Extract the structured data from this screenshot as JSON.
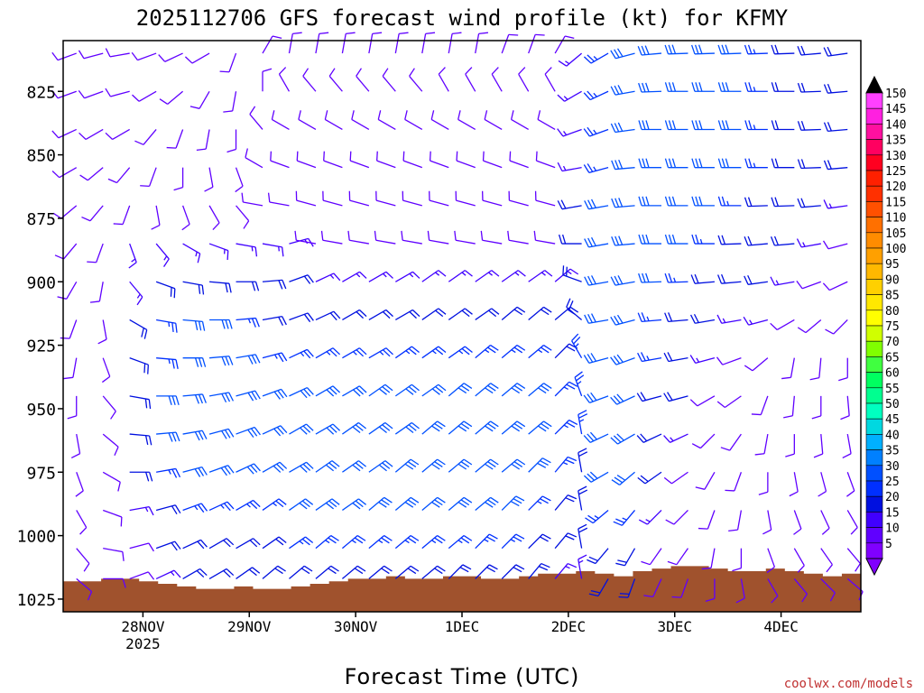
{
  "chart_data": {
    "type": "wind-barb-profile",
    "title": "2025112706 GFS forecast wind profile (kt) for KFMY",
    "xlabel": "Forecast Time (UTC)",
    "ylabel": "",
    "credit": "coolwx.com/models",
    "x_ticks": [
      {
        "label": "28NOV",
        "sublabel": "2025",
        "hour": 18
      },
      {
        "label": "29NOV",
        "sublabel": "",
        "hour": 42
      },
      {
        "label": "30NOV",
        "sublabel": "",
        "hour": 66
      },
      {
        "label": "1DEC",
        "sublabel": "",
        "hour": 90
      },
      {
        "label": "2DEC",
        "sublabel": "",
        "hour": 114
      },
      {
        "label": "3DEC",
        "sublabel": "",
        "hour": 138
      },
      {
        "label": "4DEC",
        "sublabel": "",
        "hour": 162
      }
    ],
    "x_range_hours": [
      0,
      180
    ],
    "y_ticks": [
      "825",
      "850",
      "875",
      "900",
      "925",
      "950",
      "975",
      "1000",
      "1025"
    ],
    "y_range_hpa": [
      805,
      1030
    ],
    "pressure_levels": [
      810,
      825,
      840,
      855,
      870,
      885,
      900,
      915,
      930,
      945,
      960,
      975,
      990,
      1005,
      1017
    ],
    "colorbar": {
      "labels": [
        "150",
        "145",
        "140",
        "135",
        "130",
        "125",
        "120",
        "115",
        "110",
        "105",
        "100",
        "95",
        "90",
        "85",
        "80",
        "75",
        "70",
        "65",
        "60",
        "55",
        "50",
        "45",
        "40",
        "35",
        "30",
        "25",
        "20",
        "15",
        "10",
        "5"
      ],
      "colors": [
        "#ff40ff",
        "#ff20e0",
        "#ff10a0",
        "#ff0060",
        "#ff0020",
        "#ff2000",
        "#ff3000",
        "#ff5000",
        "#ff7000",
        "#ff8c00",
        "#ffa000",
        "#ffb800",
        "#ffd000",
        "#ffe800",
        "#ffff00",
        "#d0ff00",
        "#80ff00",
        "#40ff40",
        "#00ff60",
        "#00ff90",
        "#00ffc0",
        "#00d8e0",
        "#00b0ff",
        "#0080ff",
        "#0050ff",
        "#0030ff",
        "#0010e0",
        "#4000ff",
        "#6000ff",
        "#8000ff"
      ]
    },
    "terrain_color": "#a0522d",
    "terrain_surface_hpa": [
      1018,
      1018,
      1017,
      1017,
      1018,
      1019,
      1020,
      1021,
      1021,
      1020,
      1021,
      1021,
      1020,
      1019,
      1018,
      1017,
      1017,
      1016,
      1017,
      1017,
      1016,
      1016,
      1017,
      1017,
      1016,
      1015,
      1015,
      1014,
      1015,
      1016,
      1014,
      1013,
      1012,
      1012,
      1013,
      1014,
      1014,
      1013,
      1014,
      1015,
      1016,
      1015
    ],
    "wind_profile": [
      {
        "hour": 3,
        "speeds": [
          10,
          10,
          10,
          10,
          10,
          10,
          8,
          8,
          8,
          8,
          8,
          8,
          8,
          8,
          8
        ],
        "dirs": [
          250,
          250,
          245,
          240,
          230,
          220,
          210,
          200,
          190,
          180,
          170,
          160,
          150,
          140,
          130
        ]
      },
      {
        "hour": 9,
        "speeds": [
          10,
          10,
          10,
          10,
          12,
          12,
          12,
          12,
          12,
          12,
          12,
          10,
          10,
          10,
          10
        ],
        "dirs": [
          255,
          250,
          240,
          230,
          220,
          200,
          190,
          170,
          160,
          140,
          130,
          120,
          110,
          100,
          90
        ]
      },
      {
        "hour": 15,
        "speeds": [
          8,
          8,
          10,
          10,
          12,
          15,
          15,
          18,
          20,
          20,
          20,
          18,
          15,
          12,
          10
        ],
        "dirs": [
          260,
          255,
          240,
          220,
          200,
          160,
          140,
          120,
          110,
          100,
          95,
          90,
          80,
          75,
          70
        ]
      },
      {
        "hour": 21,
        "speeds": [
          8,
          8,
          10,
          10,
          12,
          15,
          20,
          25,
          25,
          28,
          28,
          25,
          20,
          18,
          15
        ],
        "dirs": [
          250,
          240,
          220,
          200,
          170,
          140,
          110,
          100,
          95,
          90,
          85,
          80,
          75,
          70,
          65
        ]
      },
      {
        "hour": 27,
        "speeds": [
          8,
          8,
          10,
          10,
          12,
          15,
          22,
          28,
          28,
          30,
          30,
          28,
          25,
          22,
          18
        ],
        "dirs": [
          245,
          230,
          200,
          180,
          160,
          120,
          100,
          95,
          90,
          85,
          80,
          75,
          70,
          65,
          60
        ]
      },
      {
        "hour": 33,
        "speeds": [
          8,
          8,
          10,
          10,
          12,
          15,
          22,
          28,
          30,
          30,
          30,
          28,
          25,
          22,
          20
        ],
        "dirs": [
          240,
          210,
          190,
          170,
          150,
          110,
          95,
          90,
          85,
          80,
          75,
          70,
          65,
          60,
          60
        ]
      },
      {
        "hour": 39,
        "speeds": [
          8,
          8,
          8,
          10,
          12,
          15,
          20,
          25,
          28,
          30,
          30,
          28,
          25,
          22,
          20
        ],
        "dirs": [
          200,
          190,
          180,
          160,
          140,
          100,
          90,
          85,
          80,
          75,
          70,
          65,
          60,
          60,
          55
        ]
      },
      {
        "hour": 45,
        "speeds": [
          10,
          10,
          10,
          12,
          12,
          15,
          18,
          22,
          25,
          28,
          30,
          28,
          25,
          22,
          20
        ],
        "dirs": [
          30,
          0,
          320,
          300,
          280,
          100,
          85,
          80,
          75,
          70,
          65,
          60,
          55,
          55,
          50
        ]
      },
      {
        "hour": 51,
        "speeds": [
          10,
          12,
          12,
          12,
          12,
          15,
          18,
          22,
          25,
          28,
          30,
          30,
          28,
          25,
          22
        ],
        "dirs": [
          10,
          330,
          300,
          290,
          280,
          75,
          70,
          70,
          65,
          65,
          60,
          60,
          55,
          55,
          50
        ]
      },
      {
        "hour": 57,
        "speeds": [
          10,
          12,
          12,
          12,
          12,
          12,
          15,
          20,
          25,
          28,
          30,
          30,
          28,
          25,
          20
        ],
        "dirs": [
          10,
          320,
          300,
          290,
          285,
          280,
          65,
          65,
          60,
          60,
          60,
          55,
          55,
          50,
          50
        ]
      },
      {
        "hour": 63,
        "speeds": [
          10,
          12,
          12,
          12,
          12,
          12,
          15,
          20,
          25,
          28,
          30,
          30,
          28,
          25,
          20
        ],
        "dirs": [
          10,
          320,
          300,
          290,
          285,
          280,
          60,
          60,
          60,
          60,
          55,
          55,
          55,
          50,
          50
        ]
      },
      {
        "hour": 69,
        "speeds": [
          10,
          12,
          12,
          12,
          12,
          12,
          15,
          20,
          25,
          28,
          30,
          30,
          28,
          25,
          20
        ],
        "dirs": [
          10,
          320,
          300,
          290,
          285,
          280,
          60,
          60,
          60,
          55,
          55,
          55,
          50,
          50,
          50
        ]
      },
      {
        "hour": 75,
        "speeds": [
          10,
          12,
          12,
          12,
          12,
          12,
          15,
          20,
          25,
          28,
          30,
          30,
          28,
          25,
          20
        ],
        "dirs": [
          10,
          320,
          300,
          290,
          285,
          280,
          60,
          60,
          55,
          55,
          55,
          50,
          50,
          50,
          50
        ]
      },
      {
        "hour": 81,
        "speeds": [
          10,
          12,
          12,
          12,
          12,
          12,
          15,
          20,
          25,
          28,
          30,
          30,
          28,
          25,
          20
        ],
        "dirs": [
          10,
          320,
          300,
          290,
          285,
          280,
          55,
          55,
          55,
          55,
          50,
          50,
          50,
          50,
          50
        ]
      },
      {
        "hour": 87,
        "speeds": [
          10,
          12,
          12,
          12,
          12,
          12,
          15,
          20,
          25,
          28,
          30,
          30,
          28,
          25,
          20
        ],
        "dirs": [
          10,
          330,
          300,
          290,
          285,
          280,
          55,
          55,
          55,
          50,
          50,
          50,
          50,
          50,
          45
        ]
      },
      {
        "hour": 93,
        "speeds": [
          10,
          12,
          12,
          12,
          12,
          12,
          15,
          20,
          25,
          28,
          30,
          30,
          28,
          25,
          20
        ],
        "dirs": [
          10,
          330,
          300,
          290,
          285,
          280,
          55,
          55,
          50,
          50,
          50,
          50,
          50,
          45,
          45
        ]
      },
      {
        "hour": 99,
        "speeds": [
          10,
          12,
          12,
          12,
          12,
          12,
          15,
          20,
          25,
          28,
          30,
          30,
          28,
          25,
          20
        ],
        "dirs": [
          20,
          330,
          300,
          290,
          285,
          280,
          55,
          50,
          50,
          50,
          50,
          50,
          45,
          45,
          45
        ]
      },
      {
        "hour": 105,
        "speeds": [
          10,
          12,
          12,
          12,
          12,
          12,
          15,
          20,
          25,
          28,
          28,
          28,
          25,
          22,
          18
        ],
        "dirs": [
          20,
          330,
          300,
          290,
          285,
          280,
          55,
          50,
          50,
          50,
          50,
          45,
          45,
          45,
          40
        ]
      },
      {
        "hour": 111,
        "speeds": [
          10,
          12,
          12,
          12,
          12,
          12,
          15,
          18,
          22,
          25,
          25,
          25,
          22,
          20,
          15
        ],
        "dirs": [
          30,
          330,
          300,
          290,
          285,
          280,
          50,
          50,
          45,
          45,
          45,
          40,
          40,
          40,
          40
        ]
      },
      {
        "hour": 117,
        "speeds": [
          15,
          15,
          15,
          15,
          18,
          18,
          20,
          22,
          25,
          25,
          25,
          22,
          20,
          18,
          15
        ],
        "dirs": [
          230,
          240,
          250,
          260,
          260,
          270,
          290,
          310,
          330,
          340,
          350,
          350,
          350,
          350,
          350
        ]
      },
      {
        "hour": 123,
        "speeds": [
          25,
          25,
          25,
          25,
          28,
          28,
          28,
          30,
          30,
          30,
          30,
          28,
          25,
          22,
          20
        ],
        "dirs": [
          240,
          245,
          250,
          255,
          260,
          260,
          260,
          260,
          255,
          250,
          245,
          240,
          230,
          220,
          210
        ]
      },
      {
        "hour": 129,
        "speeds": [
          28,
          30,
          30,
          30,
          30,
          30,
          30,
          30,
          30,
          30,
          28,
          28,
          25,
          22,
          18
        ],
        "dirs": [
          255,
          260,
          262,
          265,
          265,
          265,
          260,
          255,
          250,
          245,
          240,
          230,
          220,
          210,
          200
        ]
      },
      {
        "hour": 135,
        "speeds": [
          30,
          30,
          30,
          30,
          30,
          30,
          28,
          25,
          25,
          22,
          20,
          18,
          15,
          12,
          10
        ],
        "dirs": [
          265,
          268,
          270,
          270,
          270,
          270,
          268,
          265,
          260,
          255,
          245,
          235,
          225,
          215,
          205
        ]
      },
      {
        "hour": 141,
        "speeds": [
          30,
          30,
          30,
          30,
          30,
          28,
          25,
          22,
          20,
          18,
          15,
          12,
          10,
          10,
          8
        ],
        "dirs": [
          268,
          270,
          270,
          270,
          270,
          270,
          268,
          265,
          260,
          255,
          245,
          235,
          225,
          215,
          200
        ]
      },
      {
        "hour": 147,
        "speeds": [
          28,
          30,
          30,
          30,
          28,
          25,
          22,
          18,
          15,
          12,
          10,
          10,
          8,
          8,
          8
        ],
        "dirs": [
          268,
          270,
          270,
          270,
          270,
          270,
          265,
          260,
          255,
          240,
          225,
          210,
          200,
          190,
          180
        ]
      },
      {
        "hour": 153,
        "speeds": [
          28,
          28,
          28,
          28,
          25,
          22,
          18,
          15,
          12,
          10,
          10,
          8,
          8,
          8,
          8
        ],
        "dirs": [
          268,
          270,
          270,
          270,
          270,
          268,
          265,
          260,
          250,
          235,
          215,
          200,
          190,
          180,
          170
        ]
      },
      {
        "hour": 159,
        "speeds": [
          25,
          25,
          25,
          25,
          22,
          20,
          18,
          15,
          12,
          10,
          8,
          8,
          8,
          8,
          8
        ],
        "dirs": [
          268,
          270,
          270,
          270,
          268,
          265,
          262,
          255,
          230,
          200,
          190,
          180,
          170,
          160,
          150
        ]
      },
      {
        "hour": 165,
        "speeds": [
          22,
          22,
          22,
          22,
          20,
          18,
          15,
          12,
          10,
          10,
          8,
          8,
          8,
          8,
          8
        ],
        "dirs": [
          268,
          270,
          270,
          270,
          268,
          265,
          260,
          240,
          190,
          185,
          180,
          170,
          160,
          150,
          140
        ]
      },
      {
        "hour": 171,
        "speeds": [
          20,
          20,
          20,
          20,
          18,
          15,
          12,
          10,
          10,
          8,
          8,
          8,
          8,
          8,
          8
        ],
        "dirs": [
          265,
          268,
          268,
          268,
          265,
          260,
          250,
          230,
          185,
          180,
          175,
          165,
          155,
          145,
          135
        ]
      },
      {
        "hour": 177,
        "speeds": [
          18,
          18,
          18,
          18,
          15,
          12,
          10,
          10,
          8,
          8,
          8,
          8,
          8,
          8,
          8
        ],
        "dirs": [
          262,
          265,
          265,
          265,
          262,
          255,
          245,
          225,
          180,
          175,
          170,
          160,
          150,
          140,
          130
        ]
      }
    ]
  }
}
